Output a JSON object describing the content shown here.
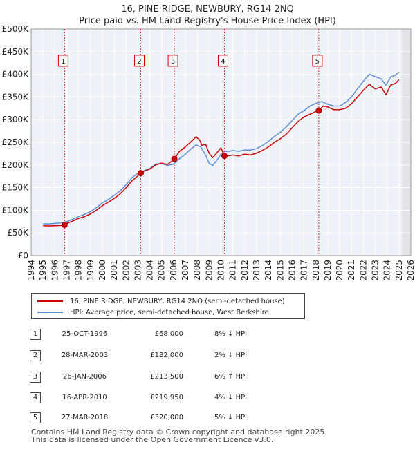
{
  "title_line1": "16, PINE RIDGE, NEWBURY, RG14 2NQ",
  "title_line2": "Price paid vs. HM Land Registry's House Price Index (HPI)",
  "chart_data": {
    "type": "line",
    "x_range": [
      1994.0,
      2026.0
    ],
    "y_range": [
      0,
      500000
    ],
    "grid": true,
    "y_ticks": [
      {
        "value": 0,
        "label": "£0"
      },
      {
        "value": 50000,
        "label": "£50K"
      },
      {
        "value": 100000,
        "label": "£100K"
      },
      {
        "value": 150000,
        "label": "£150K"
      },
      {
        "value": 200000,
        "label": "£200K"
      },
      {
        "value": 250000,
        "label": "£250K"
      },
      {
        "value": 300000,
        "label": "£300K"
      },
      {
        "value": 350000,
        "label": "£350K"
      },
      {
        "value": 400000,
        "label": "£400K"
      },
      {
        "value": 450000,
        "label": "£450K"
      },
      {
        "value": 500000,
        "label": "£500K"
      }
    ],
    "x_ticks": [
      "1994",
      "1995",
      "1996",
      "1997",
      "1998",
      "1999",
      "2000",
      "2001",
      "2002",
      "2003",
      "2004",
      "2005",
      "2006",
      "2007",
      "2008",
      "2009",
      "2010",
      "2011",
      "2012",
      "2013",
      "2014",
      "2015",
      "2016",
      "2017",
      "2018",
      "2019",
      "2020",
      "2021",
      "2022",
      "2023",
      "2024",
      "2025",
      "2026"
    ],
    "data_start": 1995.0,
    "data_end": 2025.25,
    "series": [
      {
        "name": "16, PINE RIDGE, NEWBURY, RG14 2NQ (semi-detached house)",
        "color": "#cc0000",
        "points": [
          [
            1995.0,
            66000
          ],
          [
            1995.5,
            65500
          ],
          [
            1996.0,
            66000
          ],
          [
            1996.5,
            66500
          ],
          [
            1996.82,
            68000
          ],
          [
            1997.0,
            71000
          ],
          [
            1997.5,
            76000
          ],
          [
            1998.0,
            82000
          ],
          [
            1998.5,
            86000
          ],
          [
            1999.0,
            92000
          ],
          [
            1999.5,
            100000
          ],
          [
            2000.0,
            110000
          ],
          [
            2000.5,
            118000
          ],
          [
            2001.0,
            126000
          ],
          [
            2001.5,
            136000
          ],
          [
            2002.0,
            150000
          ],
          [
            2002.5,
            165000
          ],
          [
            2003.0,
            176000
          ],
          [
            2003.24,
            182000
          ],
          [
            2003.5,
            186000
          ],
          [
            2004.0,
            191000
          ],
          [
            2004.5,
            200000
          ],
          [
            2005.0,
            204000
          ],
          [
            2005.5,
            201000
          ],
          [
            2006.07,
            213500
          ],
          [
            2006.5,
            230000
          ],
          [
            2007.0,
            240000
          ],
          [
            2007.5,
            252000
          ],
          [
            2007.9,
            262000
          ],
          [
            2008.2,
            255000
          ],
          [
            2008.4,
            243000
          ],
          [
            2008.7,
            246000
          ],
          [
            2009.0,
            226000
          ],
          [
            2009.3,
            216000
          ],
          [
            2009.7,
            228000
          ],
          [
            2010.0,
            238000
          ],
          [
            2010.29,
            219950
          ],
          [
            2010.6,
            220000
          ],
          [
            2011.0,
            222000
          ],
          [
            2011.5,
            220000
          ],
          [
            2012.0,
            224000
          ],
          [
            2012.5,
            222000
          ],
          [
            2013.0,
            226000
          ],
          [
            2013.5,
            232000
          ],
          [
            2014.0,
            240000
          ],
          [
            2014.5,
            250000
          ],
          [
            2015.0,
            258000
          ],
          [
            2015.5,
            268000
          ],
          [
            2016.0,
            282000
          ],
          [
            2016.5,
            296000
          ],
          [
            2017.0,
            306000
          ],
          [
            2017.5,
            312000
          ],
          [
            2018.0,
            318000
          ],
          [
            2018.24,
            320000
          ],
          [
            2018.6,
            330000
          ],
          [
            2019.0,
            328000
          ],
          [
            2019.5,
            322000
          ],
          [
            2020.0,
            322000
          ],
          [
            2020.5,
            325000
          ],
          [
            2021.0,
            335000
          ],
          [
            2021.5,
            350000
          ],
          [
            2022.0,
            365000
          ],
          [
            2022.5,
            378000
          ],
          [
            2023.0,
            368000
          ],
          [
            2023.5,
            372000
          ],
          [
            2023.9,
            355000
          ],
          [
            2024.3,
            376000
          ],
          [
            2024.7,
            380000
          ],
          [
            2025.0,
            388000
          ]
        ]
      },
      {
        "name": "HPI: Average price, semi-detached house, West Berkshire",
        "color": "#5b8fd4",
        "points": [
          [
            1995.0,
            70000
          ],
          [
            1995.5,
            70000
          ],
          [
            1996.0,
            71000
          ],
          [
            1996.5,
            72000
          ],
          [
            1997.0,
            75000
          ],
          [
            1997.5,
            80000
          ],
          [
            1998.0,
            86000
          ],
          [
            1998.5,
            91000
          ],
          [
            1999.0,
            97000
          ],
          [
            1999.5,
            106000
          ],
          [
            2000.0,
            116000
          ],
          [
            2000.5,
            124000
          ],
          [
            2001.0,
            133000
          ],
          [
            2001.5,
            143000
          ],
          [
            2002.0,
            156000
          ],
          [
            2002.5,
            172000
          ],
          [
            2003.0,
            182000
          ],
          [
            2003.5,
            187000
          ],
          [
            2004.0,
            192000
          ],
          [
            2004.5,
            202000
          ],
          [
            2005.0,
            203000
          ],
          [
            2005.5,
            199000
          ],
          [
            2006.0,
            202000
          ],
          [
            2006.5,
            214000
          ],
          [
            2007.0,
            224000
          ],
          [
            2007.5,
            236000
          ],
          [
            2007.9,
            244000
          ],
          [
            2008.3,
            240000
          ],
          [
            2008.7,
            222000
          ],
          [
            2009.0,
            204000
          ],
          [
            2009.3,
            199000
          ],
          [
            2009.7,
            212000
          ],
          [
            2010.0,
            224000
          ],
          [
            2010.3,
            230000
          ],
          [
            2010.7,
            230000
          ],
          [
            2011.0,
            232000
          ],
          [
            2011.5,
            230000
          ],
          [
            2012.0,
            233000
          ],
          [
            2012.5,
            233000
          ],
          [
            2013.0,
            236000
          ],
          [
            2013.5,
            243000
          ],
          [
            2014.0,
            252000
          ],
          [
            2014.5,
            263000
          ],
          [
            2015.0,
            272000
          ],
          [
            2015.5,
            284000
          ],
          [
            2016.0,
            298000
          ],
          [
            2016.5,
            312000
          ],
          [
            2017.0,
            320000
          ],
          [
            2017.5,
            330000
          ],
          [
            2018.0,
            336000
          ],
          [
            2018.5,
            340000
          ],
          [
            2019.0,
            334000
          ],
          [
            2019.5,
            330000
          ],
          [
            2020.0,
            330000
          ],
          [
            2020.5,
            338000
          ],
          [
            2021.0,
            350000
          ],
          [
            2021.5,
            368000
          ],
          [
            2022.0,
            385000
          ],
          [
            2022.5,
            400000
          ],
          [
            2023.0,
            395000
          ],
          [
            2023.5,
            390000
          ],
          [
            2023.9,
            376000
          ],
          [
            2024.3,
            394000
          ],
          [
            2024.7,
            398000
          ],
          [
            2025.0,
            405000
          ]
        ]
      }
    ],
    "markers": [
      {
        "label": "1",
        "x": 1996.82,
        "y": 68000
      },
      {
        "label": "2",
        "x": 2003.24,
        "y": 182000
      },
      {
        "label": "3",
        "x": 2006.07,
        "y": 213500
      },
      {
        "label": "4",
        "x": 2010.29,
        "y": 219950
      },
      {
        "label": "5",
        "x": 2018.24,
        "y": 320000
      }
    ],
    "marker_box_value": 430000,
    "legend": [
      {
        "label": "16, PINE RIDGE, NEWBURY, RG14 2NQ (semi-detached house)",
        "color": "#cc0000"
      },
      {
        "label": "HPI: Average price, semi-detached house, West Berkshire",
        "color": "#5b8fd4"
      }
    ]
  },
  "transactions": [
    {
      "num": "1",
      "date": "25-OCT-1996",
      "price": "£68,000",
      "hpi": "8% ↓ HPI"
    },
    {
      "num": "2",
      "date": "28-MAR-2003",
      "price": "£182,000",
      "hpi": "2% ↓ HPI"
    },
    {
      "num": "3",
      "date": "26-JAN-2006",
      "price": "£213,500",
      "hpi": "6% ↑ HPI"
    },
    {
      "num": "4",
      "date": "16-APR-2010",
      "price": "£219,950",
      "hpi": "4% ↓ HPI"
    },
    {
      "num": "5",
      "date": "27-MAR-2018",
      "price": "£320,000",
      "hpi": "5% ↓ HPI"
    }
  ],
  "footer_line1": "Contains HM Land Registry data © Crown copyright and database right 2025.",
  "footer_line2": "This data is licensed under the Open Government Licence v3.0."
}
